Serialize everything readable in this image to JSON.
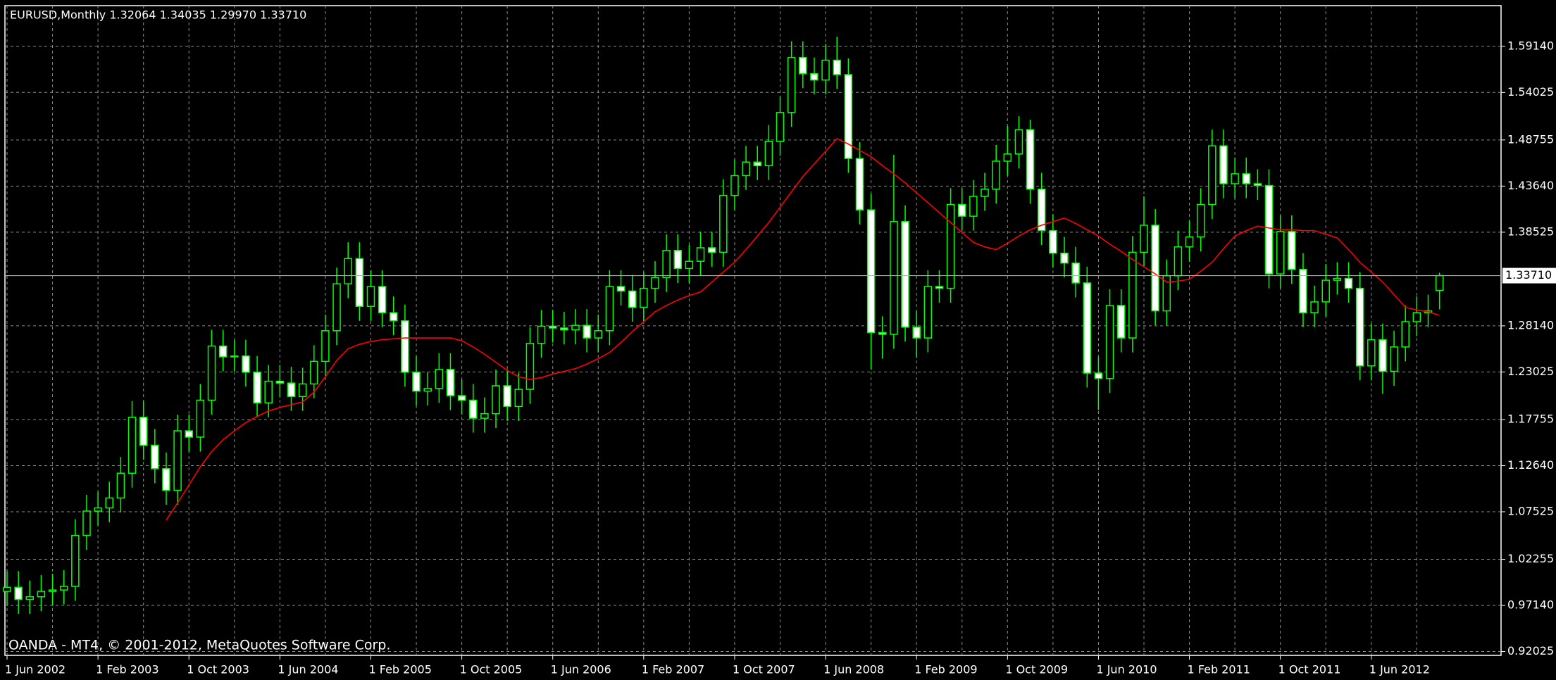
{
  "chart_data": {
    "type": "candlestick",
    "title": "EURUSD,Monthly  1.32064 1.34035 1.29970 1.33710",
    "footer": "OANDA - MT4, © 2001-2012, MetaQuotes Software Corp.",
    "categories": [
      "1 Jun 2002",
      null,
      null,
      null,
      null,
      null,
      null,
      null,
      "1 Feb 2003",
      null,
      null,
      null,
      null,
      null,
      null,
      null,
      "1 Oct 2003",
      null,
      null,
      null,
      null,
      null,
      null,
      null,
      "1 Jun 2004",
      null,
      null,
      null,
      null,
      null,
      null,
      null,
      "1 Feb 2005",
      null,
      null,
      null,
      null,
      null,
      null,
      null,
      "1 Oct 2005",
      null,
      null,
      null,
      null,
      null,
      null,
      null,
      "1 Jun 2006",
      null,
      null,
      null,
      null,
      null,
      null,
      null,
      "1 Feb 2007",
      null,
      null,
      null,
      null,
      null,
      null,
      null,
      "1 Oct 2007",
      null,
      null,
      null,
      null,
      null,
      null,
      null,
      "1 Jun 2008",
      null,
      null,
      null,
      null,
      null,
      null,
      null,
      "1 Feb 2009",
      null,
      null,
      null,
      null,
      null,
      null,
      null,
      "1 Oct 2009",
      null,
      null,
      null,
      null,
      null,
      null,
      null,
      "1 Jun 2010",
      null,
      null,
      null,
      null,
      null,
      null,
      null,
      "1 Feb 2011",
      null,
      null,
      null,
      null,
      null,
      null,
      null,
      "1 Oct 2011",
      null,
      null,
      null,
      null,
      null,
      null,
      null,
      "1 Jun 2012",
      null,
      null,
      null,
      null,
      null,
      null
    ],
    "open": [
      0.987,
      0.9915,
      0.978,
      0.981,
      0.987,
      0.9885,
      0.9925,
      1.049,
      1.076,
      1.0795,
      1.0905,
      1.118,
      1.18,
      1.149,
      1.123,
      1.099,
      1.165,
      1.158,
      1.199,
      1.259,
      1.247,
      1.248,
      1.23,
      1.196,
      1.22,
      1.218,
      1.203,
      1.217,
      1.242,
      1.276,
      1.328,
      1.356,
      1.303,
      1.325,
      1.296,
      1.287,
      1.23,
      1.209,
      1.212,
      1.233,
      1.204,
      1.199,
      1.179,
      1.184,
      1.215,
      1.192,
      1.211,
      1.262,
      1.281,
      1.279,
      1.277,
      1.282,
      1.268,
      1.276,
      1.325,
      1.32,
      1.302,
      1.323,
      1.335,
      1.365,
      1.345,
      1.353,
      1.368,
      1.363,
      1.426,
      1.448,
      1.463,
      1.459,
      1.486,
      1.518,
      1.579,
      1.561,
      1.554,
      1.576,
      1.56,
      1.467,
      1.41,
      1.274,
      1.272,
      1.397,
      1.28,
      1.268,
      1.325,
      1.323,
      1.416,
      1.403,
      1.425,
      1.433,
      1.464,
      1.472,
      1.499,
      1.433,
      1.387,
      1.362,
      1.351,
      1.329,
      1.229,
      1.223,
      1.304,
      1.268,
      1.363,
      1.393,
      1.298,
      1.337,
      1.369,
      1.38,
      1.416,
      1.481,
      1.439,
      1.45,
      1.439,
      1.437,
      1.339,
      1.386,
      1.344,
      1.296,
      1.308,
      1.332,
      1.334,
      1.323,
      1.237,
      1.266,
      1.231,
      1.258,
      1.286,
      1.296,
      1.32064
    ],
    "high": [
      1.0095,
      1.0095,
      0.999,
      1.005,
      1.0065,
      1.0105,
      1.067,
      1.094,
      1.0975,
      1.1085,
      1.136,
      1.198,
      1.198,
      1.167,
      1.141,
      1.183,
      1.183,
      1.217,
      1.277,
      1.277,
      1.266,
      1.266,
      1.248,
      1.238,
      1.238,
      1.236,
      1.235,
      1.26,
      1.294,
      1.346,
      1.374,
      1.374,
      1.343,
      1.343,
      1.314,
      1.305,
      1.248,
      1.23,
      1.251,
      1.251,
      1.222,
      1.217,
      1.202,
      1.233,
      1.233,
      1.229,
      1.28,
      1.299,
      1.299,
      1.297,
      1.3,
      1.3,
      1.294,
      1.343,
      1.343,
      1.338,
      1.341,
      1.353,
      1.383,
      1.383,
      1.371,
      1.386,
      1.386,
      1.444,
      1.466,
      1.481,
      1.481,
      1.504,
      1.536,
      1.597,
      1.597,
      1.579,
      1.594,
      1.602,
      1.578,
      1.485,
      1.428,
      1.292,
      1.471,
      1.415,
      1.298,
      1.343,
      1.343,
      1.434,
      1.434,
      1.443,
      1.451,
      1.482,
      1.503,
      1.514,
      1.51,
      1.451,
      1.405,
      1.38,
      1.369,
      1.347,
      1.247,
      1.322,
      1.322,
      1.381,
      1.425,
      1.411,
      1.355,
      1.387,
      1.398,
      1.434,
      1.499,
      1.499,
      1.468,
      1.468,
      1.455,
      1.455,
      1.404,
      1.404,
      1.362,
      1.326,
      1.35,
      1.352,
      1.352,
      1.341,
      1.284,
      1.284,
      1.276,
      1.304,
      1.314,
      1.316,
      1.34035
    ],
    "low": [
      0.971,
      0.962,
      0.962,
      0.965,
      0.971,
      0.9725,
      0.9765,
      1.033,
      1.06,
      1.0635,
      1.0745,
      1.102,
      1.133,
      1.107,
      1.083,
      1.083,
      1.142,
      1.142,
      1.183,
      1.231,
      1.231,
      1.214,
      1.18,
      1.18,
      1.202,
      1.187,
      1.187,
      1.201,
      1.226,
      1.26,
      1.312,
      1.287,
      1.287,
      1.28,
      1.271,
      1.214,
      1.193,
      1.193,
      1.196,
      1.188,
      1.183,
      1.163,
      1.163,
      1.168,
      1.176,
      1.176,
      1.195,
      1.246,
      1.263,
      1.261,
      1.261,
      1.252,
      1.252,
      1.26,
      1.304,
      1.286,
      1.286,
      1.307,
      1.319,
      1.329,
      1.329,
      1.337,
      1.347,
      1.347,
      1.41,
      1.432,
      1.443,
      1.443,
      1.47,
      1.502,
      1.545,
      1.538,
      1.538,
      1.544,
      1.451,
      1.394,
      1.233,
      1.245,
      1.256,
      1.264,
      1.246,
      1.252,
      1.307,
      1.307,
      1.387,
      1.387,
      1.409,
      1.417,
      1.448,
      1.456,
      1.417,
      1.371,
      1.346,
      1.335,
      1.313,
      1.213,
      1.188,
      1.207,
      1.252,
      1.252,
      1.347,
      1.282,
      1.282,
      1.321,
      1.353,
      1.364,
      1.4,
      1.423,
      1.423,
      1.423,
      1.421,
      1.323,
      1.323,
      1.328,
      1.28,
      1.28,
      1.292,
      1.316,
      1.307,
      1.221,
      1.221,
      1.206,
      1.215,
      1.242,
      1.27,
      1.28,
      1.2997
    ],
    "close": [
      0.9915,
      0.978,
      0.981,
      0.987,
      0.9885,
      0.9925,
      1.049,
      1.076,
      1.0795,
      1.0905,
      1.118,
      1.18,
      1.149,
      1.123,
      1.099,
      1.165,
      1.158,
      1.199,
      1.259,
      1.247,
      1.248,
      1.23,
      1.196,
      1.22,
      1.218,
      1.203,
      1.217,
      1.242,
      1.276,
      1.328,
      1.356,
      1.303,
      1.325,
      1.296,
      1.287,
      1.23,
      1.209,
      1.212,
      1.233,
      1.204,
      1.199,
      1.179,
      1.184,
      1.215,
      1.192,
      1.211,
      1.262,
      1.281,
      1.279,
      1.277,
      1.282,
      1.268,
      1.276,
      1.325,
      1.32,
      1.302,
      1.323,
      1.335,
      1.365,
      1.345,
      1.353,
      1.368,
      1.363,
      1.426,
      1.448,
      1.463,
      1.459,
      1.486,
      1.518,
      1.579,
      1.561,
      1.554,
      1.576,
      1.56,
      1.467,
      1.41,
      1.274,
      1.272,
      1.397,
      1.28,
      1.268,
      1.325,
      1.323,
      1.416,
      1.403,
      1.425,
      1.433,
      1.464,
      1.472,
      1.499,
      1.433,
      1.387,
      1.362,
      1.351,
      1.329,
      1.229,
      1.223,
      1.304,
      1.268,
      1.363,
      1.393,
      1.298,
      1.337,
      1.369,
      1.38,
      1.416,
      1.481,
      1.439,
      1.45,
      1.439,
      1.437,
      1.339,
      1.386,
      1.344,
      1.296,
      1.308,
      1.332,
      1.334,
      1.323,
      1.237,
      1.266,
      1.231,
      1.258,
      1.286,
      1.296,
      1.298,
      1.3371
    ],
    "up_color": "#000000",
    "down_color": "#ffffff",
    "wick_color": "#00ff00",
    "series": [
      {
        "color": "#ff0000",
        "values": [
          null,
          null,
          null,
          null,
          null,
          null,
          null,
          null,
          null,
          null,
          null,
          null,
          null,
          null,
          1.066,
          1.085,
          1.105,
          1.125,
          1.142,
          1.155,
          1.165,
          1.174,
          1.181,
          1.187,
          1.191,
          1.194,
          1.197,
          1.208,
          1.225,
          1.243,
          1.256,
          1.261,
          1.264,
          1.266,
          1.267,
          1.268,
          1.268,
          1.268,
          1.268,
          1.268,
          1.265,
          1.258,
          1.25,
          1.241,
          1.232,
          1.225,
          1.222,
          1.224,
          1.228,
          1.231,
          1.234,
          1.239,
          1.245,
          1.252,
          1.263,
          1.275,
          1.286,
          1.297,
          1.304,
          1.31,
          1.315,
          1.319,
          1.33,
          1.341,
          1.352,
          1.366,
          1.381,
          1.396,
          1.413,
          1.43,
          1.447,
          1.461,
          1.475,
          1.489,
          1.483,
          1.476,
          1.469,
          1.459,
          1.45,
          1.44,
          1.429,
          1.418,
          1.407,
          1.396,
          1.385,
          1.374,
          1.369,
          1.366,
          1.373,
          1.381,
          1.388,
          1.393,
          1.397,
          1.401,
          1.395,
          1.388,
          1.381,
          1.372,
          1.364,
          1.355,
          1.347,
          1.339,
          1.33,
          1.331,
          1.333,
          1.342,
          1.352,
          1.367,
          1.381,
          1.387,
          1.392,
          1.39,
          1.388,
          1.388,
          1.387,
          1.387,
          1.383,
          1.379,
          1.366,
          1.352,
          1.341,
          1.33,
          1.316,
          1.302,
          1.299,
          1.297,
          1.293
        ]
      }
    ],
    "price_line": {
      "value": 1.3371,
      "label": "1.33710"
    },
    "ylim": [
      0.916,
      1.6365
    ],
    "yticks": [
      {
        "value": 0.92025,
        "label": "0.92025"
      },
      {
        "value": 0.9714,
        "label": "0.97140"
      },
      {
        "value": 1.02255,
        "label": "1.02255"
      },
      {
        "value": 1.07525,
        "label": "1.07525"
      },
      {
        "value": 1.1264,
        "label": "1.12640"
      },
      {
        "value": 1.17755,
        "label": "1.17755"
      },
      {
        "value": 1.23025,
        "label": "1.23025"
      },
      {
        "value": 1.2814,
        "label": "1.28140"
      },
      {
        "value": 1.38525,
        "label": "1.38525"
      },
      {
        "value": 1.4364,
        "label": "1.43640"
      },
      {
        "value": 1.48755,
        "label": "1.48755"
      },
      {
        "value": 1.54025,
        "label": "1.54025"
      },
      {
        "value": 1.5914,
        "label": "1.59140"
      }
    ],
    "grid": true
  }
}
